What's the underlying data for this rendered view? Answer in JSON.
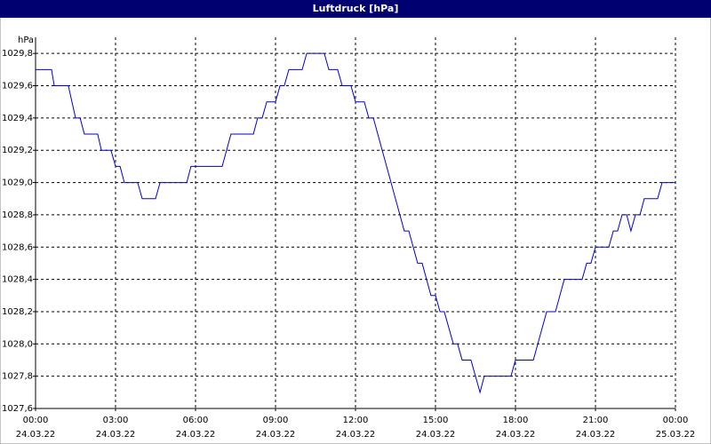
{
  "chart_data": {
    "type": "line",
    "title": "Luftdruck [hPa]",
    "y_unit": "hPa",
    "color": "#0000cc",
    "grid": true,
    "xlim": [
      0,
      24
    ],
    "xticks": [
      {
        "value": 0,
        "label": "00:00",
        "date": "24.03.22"
      },
      {
        "value": 3,
        "label": "03:00",
        "date": "24.03.22"
      },
      {
        "value": 6,
        "label": "06:00",
        "date": "24.03.22"
      },
      {
        "value": 9,
        "label": "09:00",
        "date": "24.03.22"
      },
      {
        "value": 12,
        "label": "12:00",
        "date": "24.03.22"
      },
      {
        "value": 15,
        "label": "15:00",
        "date": "24.03.22"
      },
      {
        "value": 18,
        "label": "18:00",
        "date": "24.03.22"
      },
      {
        "value": 21,
        "label": "21:00",
        "date": "24.03.22"
      },
      {
        "value": 24,
        "label": "00:00",
        "date": "25.03.22"
      }
    ],
    "ylim": [
      1027.6,
      1029.9
    ],
    "yticks": [
      {
        "value": 1027.6,
        "label": "1027,6"
      },
      {
        "value": 1027.8,
        "label": "1027,8"
      },
      {
        "value": 1028.0,
        "label": "1028,0"
      },
      {
        "value": 1028.2,
        "label": "1028,2"
      },
      {
        "value": 1028.4,
        "label": "1028,4"
      },
      {
        "value": 1028.6,
        "label": "1028,6"
      },
      {
        "value": 1028.8,
        "label": "1028,8"
      },
      {
        "value": 1029.0,
        "label": "1029,0"
      },
      {
        "value": 1029.2,
        "label": "1029,2"
      },
      {
        "value": 1029.4,
        "label": "1029,4"
      },
      {
        "value": 1029.6,
        "label": "1029,6"
      },
      {
        "value": 1029.8,
        "label": "1029,8"
      }
    ],
    "x": [
      0,
      0.6,
      0.7,
      1.23,
      1.5,
      1.67,
      1.83,
      2.33,
      2.47,
      2.83,
      3,
      3.17,
      3.33,
      3.83,
      4,
      4.5,
      4.67,
      5.67,
      5.83,
      7,
      7.33,
      8.17,
      8.33,
      8.5,
      8.67,
      9,
      9.17,
      9.33,
      9.5,
      10,
      10.17,
      10.83,
      11,
      11.33,
      11.5,
      11.83,
      12,
      12.33,
      12.5,
      12.67,
      13.83,
      14,
      14.33,
      14.5,
      14.83,
      15,
      15.17,
      15.33,
      15.67,
      15.83,
      16,
      16.33,
      16.5,
      16.67,
      16.83,
      17.83,
      18,
      18.67,
      19.17,
      19.5,
      19.83,
      20.5,
      20.67,
      20.83,
      21,
      21.5,
      21.67,
      21.83,
      22,
      22.17,
      22.33,
      22.5,
      22.67,
      22.83,
      23.33,
      23.5,
      24
    ],
    "values": [
      1029.7,
      1029.7,
      1029.6,
      1029.6,
      1029.4,
      1029.4,
      1029.3,
      1029.3,
      1029.2,
      1029.2,
      1029.1,
      1029.1,
      1029.0,
      1029.0,
      1028.9,
      1028.9,
      1029.0,
      1029.0,
      1029.1,
      1029.1,
      1029.3,
      1029.3,
      1029.4,
      1029.4,
      1029.5,
      1029.5,
      1029.6,
      1029.6,
      1029.7,
      1029.7,
      1029.8,
      1029.8,
      1029.7,
      1029.7,
      1029.6,
      1029.6,
      1029.5,
      1029.5,
      1029.4,
      1029.4,
      1028.7,
      1028.7,
      1028.5,
      1028.5,
      1028.3,
      1028.3,
      1028.2,
      1028.2,
      1028.0,
      1028.0,
      1027.9,
      1027.9,
      1027.8,
      1027.7,
      1027.8,
      1027.8,
      1027.9,
      1027.9,
      1028.2,
      1028.2,
      1028.4,
      1028.4,
      1028.5,
      1028.5,
      1028.6,
      1028.6,
      1028.7,
      1028.7,
      1028.8,
      1028.8,
      1028.7,
      1028.8,
      1028.8,
      1028.9,
      1028.9,
      1029.0,
      1029.0
    ]
  }
}
